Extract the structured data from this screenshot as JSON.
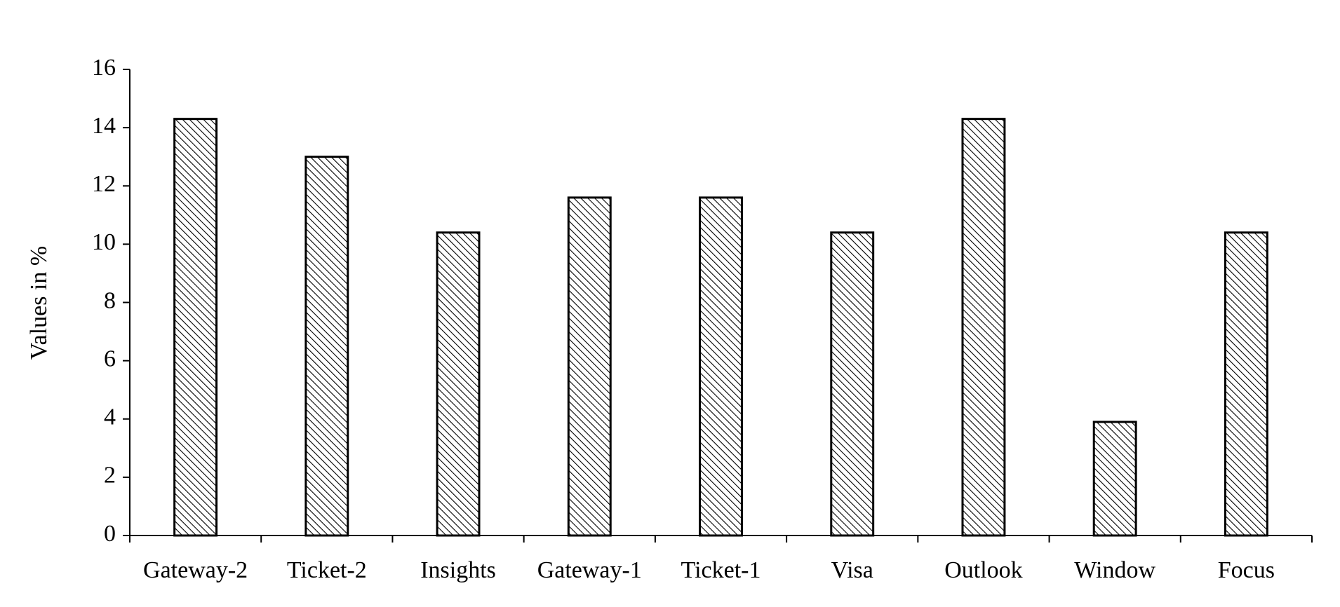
{
  "chart_data": {
    "type": "bar",
    "y_label": "Values in %",
    "categories": [
      "Gateway-2",
      "Ticket-2",
      "Insights",
      "Gateway-1",
      "Ticket-1",
      "Visa",
      "Outlook",
      "Window",
      "Focus"
    ],
    "values": [
      14.3,
      13.0,
      10.4,
      11.6,
      11.6,
      10.4,
      14.3,
      3.9,
      10.4
    ],
    "color": "#000000",
    "ylim": [
      0,
      16
    ],
    "yticks": [
      0,
      2,
      4,
      6,
      8,
      10,
      12,
      14,
      16
    ],
    "grid": false
  }
}
